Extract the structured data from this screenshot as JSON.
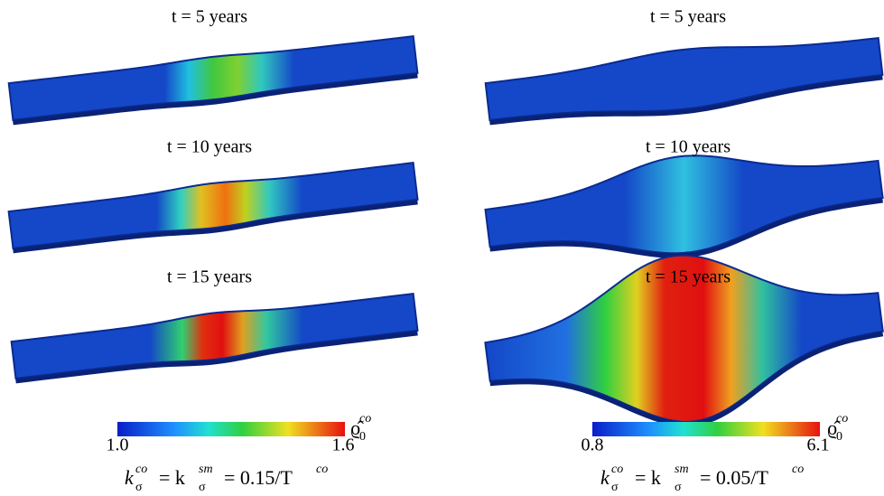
{
  "panels": [
    {
      "frames": [
        "t = 5 years",
        "t = 10 years",
        "t = 15 years"
      ],
      "colorbar": {
        "min": "1.0",
        "max": "1.6"
      },
      "formula": [
        "k",
        "σ",
        "co",
        "= k",
        "σ",
        "sm",
        "= 0.15/T",
        "co"
      ]
    },
    {
      "frames": [
        "t = 5 years",
        "t = 10 years",
        "t = 15 years"
      ],
      "colorbar": {
        "min": "0.8",
        "max": "6.1"
      },
      "formula": [
        "k",
        "σ",
        "co",
        "= k",
        "σ",
        "sm",
        "= 0.05/T",
        "co"
      ]
    }
  ],
  "colorbar_label": {
    "symbol": "ϱ̂",
    "sub": "0",
    "sup": "co"
  }
}
